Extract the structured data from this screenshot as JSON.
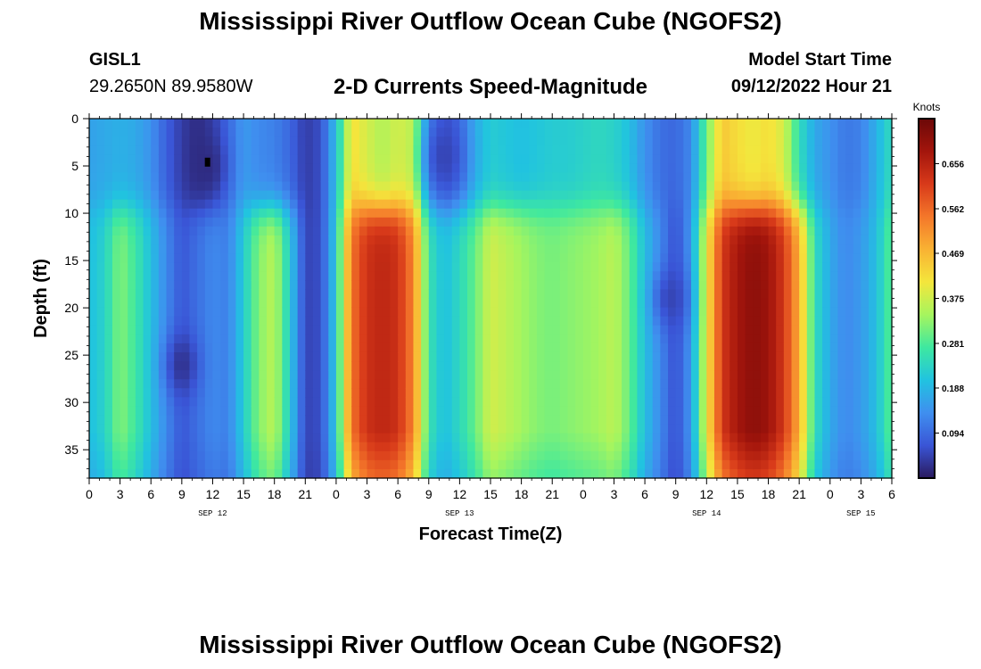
{
  "header": {
    "title": "Mississippi River Outflow Ocean Cube (NGOFS2)",
    "station": "GISL1",
    "coordinates": "29.2650N  89.9580W",
    "subtitle": "2-D Currents Speed-Magnitude",
    "model_start_label": "Model Start Time",
    "model_start_value": "09/12/2022 Hour 21"
  },
  "footer": {
    "title": "Mississippi River Outflow Ocean Cube (NGOFS2)"
  },
  "chart_data": {
    "type": "heatmap",
    "xlabel": "Forecast Time(Z)",
    "ylabel": "Depth (ft)",
    "x_tick_labels": [
      "0",
      "3",
      "6",
      "9",
      "12",
      "15",
      "18",
      "21",
      "0",
      "3",
      "6",
      "9",
      "12",
      "15",
      "18",
      "21",
      "0",
      "3",
      "6",
      "9",
      "12",
      "15",
      "18",
      "21",
      "0",
      "3",
      "6"
    ],
    "x_hours": [
      0,
      3,
      6,
      9,
      12,
      15,
      18,
      21,
      24,
      27,
      30,
      33,
      36,
      39,
      42,
      45,
      48,
      51,
      54,
      57,
      60,
      63,
      66,
      69,
      72,
      75,
      78
    ],
    "xlim_hours": [
      0,
      78
    ],
    "date_labels": [
      {
        "text": "SEP 12",
        "hour": 12
      },
      {
        "text": "SEP 13",
        "hour": 36
      },
      {
        "text": "SEP 14",
        "hour": 60
      },
      {
        "text": "SEP 15",
        "hour": 75
      }
    ],
    "y_ticks": [
      0,
      5,
      10,
      15,
      20,
      25,
      30,
      35
    ],
    "ylim": [
      0,
      38
    ],
    "y_inverted": true,
    "colorbar": {
      "units": "Knots",
      "ticks": [
        0.094,
        0.188,
        0.281,
        0.375,
        0.469,
        0.562,
        0.656
      ],
      "range": [
        0,
        0.75
      ],
      "colormap": [
        "#2a1a5e",
        "#3a55d6",
        "#3f8fef",
        "#21c3e0",
        "#3ee8a0",
        "#a6f55e",
        "#f4e63c",
        "#f9b233",
        "#f4772a",
        "#d83a1a",
        "#a3150c",
        "#6b0808"
      ]
    },
    "columns": [
      {
        "hour": 0,
        "value_upper": 0.16,
        "value_lower": 0.2
      },
      {
        "hour": 1.5,
        "value_upper": 0.17,
        "value_lower": 0.23
      },
      {
        "hour": 3,
        "value_upper": 0.18,
        "value_lower": 0.32
      },
      {
        "hour": 4.5,
        "value_upper": 0.17,
        "value_lower": 0.27
      },
      {
        "hour": 6,
        "value_upper": 0.14,
        "value_lower": 0.2
      },
      {
        "hour": 7.5,
        "value_upper": 0.08,
        "value_lower": 0.13
      },
      {
        "hour": 9,
        "value_upper": 0.04,
        "value_lower": 0.07
      },
      {
        "hour": 10.5,
        "value_upper": 0.02,
        "value_lower": 0.1
      },
      {
        "hour": 12,
        "value_upper": 0.04,
        "value_lower": 0.13
      },
      {
        "hour": 13.5,
        "value_upper": 0.09,
        "value_lower": 0.12
      },
      {
        "hour": 15,
        "value_upper": 0.15,
        "value_lower": 0.22
      },
      {
        "hour": 16.5,
        "value_upper": 0.13,
        "value_lower": 0.32
      },
      {
        "hour": 18,
        "value_upper": 0.12,
        "value_lower": 0.36
      },
      {
        "hour": 19.5,
        "value_upper": 0.09,
        "value_lower": 0.22
      },
      {
        "hour": 21,
        "value_upper": 0.04,
        "value_lower": 0.05
      },
      {
        "hour": 22.5,
        "value_upper": 0.06,
        "value_lower": 0.06
      },
      {
        "hour": 24,
        "value_upper": 0.2,
        "value_lower": 0.22
      },
      {
        "hour": 25.5,
        "value_upper": 0.42,
        "value_lower": 0.55
      },
      {
        "hour": 27,
        "value_upper": 0.38,
        "value_lower": 0.63
      },
      {
        "hour": 28.5,
        "value_upper": 0.35,
        "value_lower": 0.65
      },
      {
        "hour": 30,
        "value_upper": 0.38,
        "value_lower": 0.63
      },
      {
        "hour": 31.5,
        "value_upper": 0.36,
        "value_lower": 0.53
      },
      {
        "hour": 33,
        "value_upper": 0.12,
        "value_lower": 0.26
      },
      {
        "hour": 34.5,
        "value_upper": 0.06,
        "value_lower": 0.2
      },
      {
        "hour": 36,
        "value_upper": 0.09,
        "value_lower": 0.24
      },
      {
        "hour": 37.5,
        "value_upper": 0.17,
        "value_lower": 0.3
      },
      {
        "hour": 39,
        "value_upper": 0.22,
        "value_lower": 0.38
      },
      {
        "hour": 40.5,
        "value_upper": 0.21,
        "value_lower": 0.36
      },
      {
        "hour": 42,
        "value_upper": 0.2,
        "value_lower": 0.34
      },
      {
        "hour": 43.5,
        "value_upper": 0.21,
        "value_lower": 0.32
      },
      {
        "hour": 45,
        "value_upper": 0.22,
        "value_lower": 0.31
      },
      {
        "hour": 46.5,
        "value_upper": 0.22,
        "value_lower": 0.32
      },
      {
        "hour": 48,
        "value_upper": 0.23,
        "value_lower": 0.33
      },
      {
        "hour": 49.5,
        "value_upper": 0.24,
        "value_lower": 0.34
      },
      {
        "hour": 51,
        "value_upper": 0.23,
        "value_lower": 0.36
      },
      {
        "hour": 52.5,
        "value_upper": 0.2,
        "value_lower": 0.3
      },
      {
        "hour": 54,
        "value_upper": 0.14,
        "value_lower": 0.2
      },
      {
        "hour": 55.5,
        "value_upper": 0.1,
        "value_lower": 0.13
      },
      {
        "hour": 57,
        "value_upper": 0.09,
        "value_lower": 0.06
      },
      {
        "hour": 58.5,
        "value_upper": 0.13,
        "value_lower": 0.15
      },
      {
        "hour": 60,
        "value_upper": 0.3,
        "value_lower": 0.4
      },
      {
        "hour": 61.5,
        "value_upper": 0.45,
        "value_lower": 0.62
      },
      {
        "hour": 63,
        "value_upper": 0.42,
        "value_lower": 0.68
      },
      {
        "hour": 64.5,
        "value_upper": 0.4,
        "value_lower": 0.71
      },
      {
        "hour": 66,
        "value_upper": 0.42,
        "value_lower": 0.69
      },
      {
        "hour": 67.5,
        "value_upper": 0.38,
        "value_lower": 0.62
      },
      {
        "hour": 69,
        "value_upper": 0.25,
        "value_lower": 0.48
      },
      {
        "hour": 70.5,
        "value_upper": 0.17,
        "value_lower": 0.25
      },
      {
        "hour": 72,
        "value_upper": 0.14,
        "value_lower": 0.17
      },
      {
        "hour": 73.5,
        "value_upper": 0.11,
        "value_lower": 0.13
      },
      {
        "hour": 75,
        "value_upper": 0.12,
        "value_lower": 0.15
      },
      {
        "hour": 76.5,
        "value_upper": 0.18,
        "value_lower": 0.2
      },
      {
        "hour": 78,
        "value_upper": 0.25,
        "value_lower": 0.3
      }
    ],
    "local_minima": [
      {
        "hour": 11.5,
        "depth": 5,
        "value": 0.02
      },
      {
        "hour": 9,
        "depth": 26,
        "value": 0.03
      },
      {
        "hour": 34.5,
        "depth": 4,
        "value": 0.05
      },
      {
        "hour": 56.5,
        "depth": 19,
        "value": 0.05
      }
    ],
    "marker": {
      "hour": 11.5,
      "depth": 4.6
    }
  }
}
